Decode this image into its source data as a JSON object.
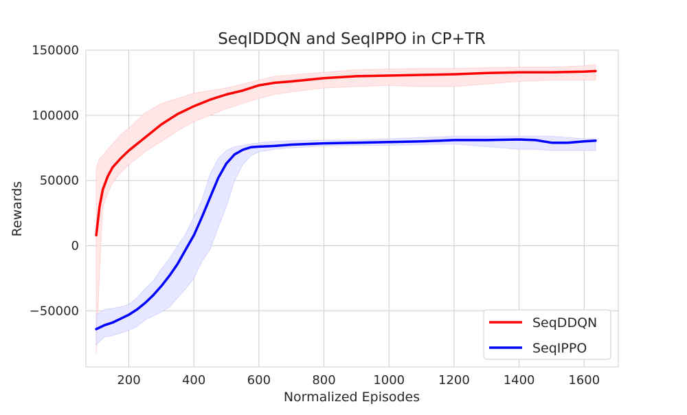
{
  "chart_data": {
    "type": "line",
    "title": "SeqIDDQN and SeqIPPO in CP+TR",
    "xlabel": "Normalized Episodes",
    "ylabel": "Rewards",
    "xlim": [
      68,
      1705
    ],
    "ylim": [
      -93000,
      150000
    ],
    "x_ticks": [
      200,
      400,
      600,
      800,
      1000,
      1200,
      1400,
      1600
    ],
    "y_ticks": [
      -50000,
      0,
      50000,
      100000,
      150000
    ],
    "x_tick_labels": [
      "200",
      "400",
      "600",
      "800",
      "1000",
      "1200",
      "1400",
      "1600"
    ],
    "y_tick_labels": [
      "−50000",
      "0",
      "50000",
      "100000",
      "150000"
    ],
    "grid": true,
    "legend_position": "lower-right",
    "series": [
      {
        "name": "SeqDDQN",
        "color": "#ff0000",
        "band_color": "#ffe4e4",
        "x": [
          100,
          110,
          120,
          135,
          150,
          175,
          200,
          250,
          300,
          350,
          400,
          450,
          500,
          550,
          600,
          650,
          700,
          800,
          900,
          1000,
          1100,
          1200,
          1300,
          1400,
          1500,
          1600,
          1635
        ],
        "y": [
          8000,
          30000,
          43000,
          53000,
          60000,
          67000,
          73000,
          83000,
          93000,
          101000,
          107000,
          112000,
          116000,
          119000,
          123000,
          125000,
          126000,
          128500,
          130000,
          130500,
          131000,
          131500,
          132500,
          133000,
          133000,
          133500,
          134000
        ],
        "band_lower": [
          -83000,
          -20000,
          30000,
          40000,
          48000,
          56000,
          62000,
          72000,
          80000,
          88000,
          95000,
          100000,
          105000,
          109000,
          113000,
          116000,
          118000,
          121000,
          122000,
          123000,
          122000,
          122000,
          124000,
          126000,
          127000,
          127000,
          127000
        ],
        "band_upper": [
          60000,
          67000,
          69000,
          74000,
          78000,
          85000,
          90000,
          102000,
          109000,
          113000,
          117000,
          119000,
          121000,
          124000,
          127000,
          130000,
          131000,
          133000,
          135000,
          135500,
          136000,
          136000,
          136500,
          137000,
          137000,
          138000,
          139000
        ]
      },
      {
        "name": "SeqIPPO",
        "color": "#0000ff",
        "band_color": "#e4e4ff",
        "x": [
          100,
          125,
          150,
          175,
          200,
          225,
          250,
          275,
          300,
          325,
          350,
          375,
          400,
          425,
          450,
          475,
          500,
          525,
          550,
          575,
          600,
          650,
          700,
          800,
          900,
          1000,
          1100,
          1200,
          1300,
          1400,
          1450,
          1500,
          1550,
          1600,
          1635
        ],
        "y": [
          -64000,
          -61000,
          -59000,
          -56000,
          -53000,
          -49000,
          -44000,
          -38000,
          -31000,
          -23000,
          -14000,
          -3000,
          8000,
          22000,
          37000,
          52000,
          63000,
          70000,
          73500,
          75500,
          76000,
          76500,
          77500,
          78500,
          79000,
          79500,
          80000,
          81000,
          81000,
          81500,
          81000,
          79000,
          79000,
          80000,
          80500
        ],
        "band_lower": [
          -76000,
          -70000,
          -69000,
          -67000,
          -65000,
          -62000,
          -57000,
          -54000,
          -51000,
          -47000,
          -40000,
          -33000,
          -25000,
          -12000,
          -3000,
          14000,
          30000,
          50000,
          62000,
          69000,
          72000,
          74000,
          75000,
          76500,
          77000,
          77000,
          77500,
          78000,
          76000,
          74000,
          74000,
          73000,
          73000,
          73000,
          73000
        ],
        "band_upper": [
          -53000,
          -49000,
          -48000,
          -47000,
          -45000,
          -40000,
          -33000,
          -27000,
          -18000,
          -10000,
          0,
          9000,
          22000,
          35000,
          55000,
          67000,
          73000,
          76000,
          77000,
          78000,
          79000,
          80000,
          80500,
          81000,
          81000,
          82000,
          83000,
          84000,
          84000,
          84000,
          84000,
          84000,
          83000,
          82000,
          82000
        ]
      }
    ]
  }
}
